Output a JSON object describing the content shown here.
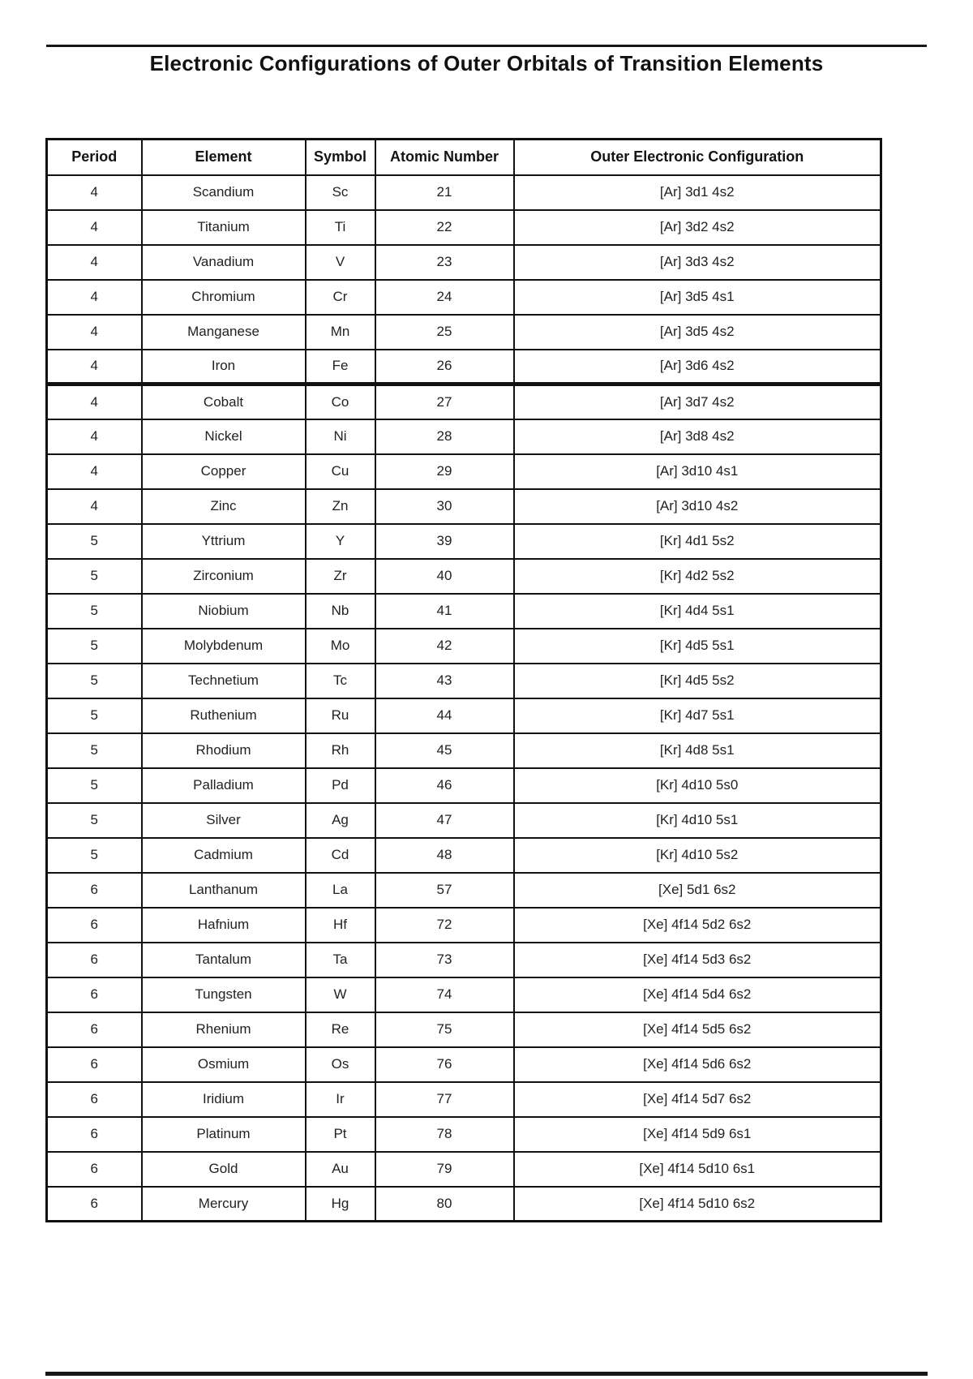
{
  "title": "Electronic Configurations of Outer Orbitals of Transition Elements",
  "table": {
    "headers": [
      "Period",
      "Element",
      "Symbol",
      "Atomic Number",
      "Outer Electronic Configuration"
    ],
    "thick_divider_after_row": 5,
    "rows": [
      [
        "4",
        "Scandium",
        "Sc",
        "21",
        "[Ar] 3d1 4s2"
      ],
      [
        "4",
        "Titanium",
        "Ti",
        "22",
        "[Ar] 3d2 4s2"
      ],
      [
        "4",
        "Vanadium",
        "V",
        "23",
        "[Ar] 3d3 4s2"
      ],
      [
        "4",
        "Chromium",
        "Cr",
        "24",
        "[Ar] 3d5 4s1"
      ],
      [
        "4",
        "Manganese",
        "Mn",
        "25",
        "[Ar] 3d5 4s2"
      ],
      [
        "4",
        "Iron",
        "Fe",
        "26",
        "[Ar] 3d6 4s2"
      ],
      [
        "4",
        "Cobalt",
        "Co",
        "27",
        "[Ar] 3d7 4s2"
      ],
      [
        "4",
        "Nickel",
        "Ni",
        "28",
        "[Ar] 3d8 4s2"
      ],
      [
        "4",
        "Copper",
        "Cu",
        "29",
        "[Ar] 3d10 4s1"
      ],
      [
        "4",
        "Zinc",
        "Zn",
        "30",
        "[Ar] 3d10 4s2"
      ],
      [
        "5",
        "Yttrium",
        "Y",
        "39",
        "[Kr] 4d1 5s2"
      ],
      [
        "5",
        "Zirconium",
        "Zr",
        "40",
        "[Kr] 4d2 5s2"
      ],
      [
        "5",
        "Niobium",
        "Nb",
        "41",
        "[Kr] 4d4 5s1"
      ],
      [
        "5",
        "Molybdenum",
        "Mo",
        "42",
        "[Kr] 4d5 5s1"
      ],
      [
        "5",
        "Technetium",
        "Tc",
        "43",
        "[Kr] 4d5 5s2"
      ],
      [
        "5",
        "Ruthenium",
        "Ru",
        "44",
        "[Kr] 4d7 5s1"
      ],
      [
        "5",
        "Rhodium",
        "Rh",
        "45",
        "[Kr] 4d8 5s1"
      ],
      [
        "5",
        "Palladium",
        "Pd",
        "46",
        "[Kr] 4d10 5s0"
      ],
      [
        "5",
        "Silver",
        "Ag",
        "47",
        "[Kr] 4d10 5s1"
      ],
      [
        "5",
        "Cadmium",
        "Cd",
        "48",
        "[Kr] 4d10 5s2"
      ],
      [
        "6",
        "Lanthanum",
        "La",
        "57",
        "[Xe] 5d1 6s2"
      ],
      [
        "6",
        "Hafnium",
        "Hf",
        "72",
        "[Xe] 4f14 5d2 6s2"
      ],
      [
        "6",
        "Tantalum",
        "Ta",
        "73",
        "[Xe] 4f14 5d3 6s2"
      ],
      [
        "6",
        "Tungsten",
        "W",
        "74",
        "[Xe] 4f14 5d4 6s2"
      ],
      [
        "6",
        "Rhenium",
        "Re",
        "75",
        "[Xe] 4f14 5d5 6s2"
      ],
      [
        "6",
        "Osmium",
        "Os",
        "76",
        "[Xe] 4f14 5d6 6s2"
      ],
      [
        "6",
        "Iridium",
        "Ir",
        "77",
        "[Xe] 4f14 5d7 6s2"
      ],
      [
        "6",
        "Platinum",
        "Pt",
        "78",
        "[Xe] 4f14 5d9 6s1"
      ],
      [
        "6",
        "Gold",
        "Au",
        "79",
        "[Xe] 4f14 5d10 6s1"
      ],
      [
        "6",
        "Mercury",
        "Hg",
        "80",
        "[Xe] 4f14 5d10 6s2"
      ]
    ]
  },
  "colors": {
    "rule": "#161616",
    "border": "#111111",
    "text": "#222222",
    "background": "#ffffff"
  }
}
